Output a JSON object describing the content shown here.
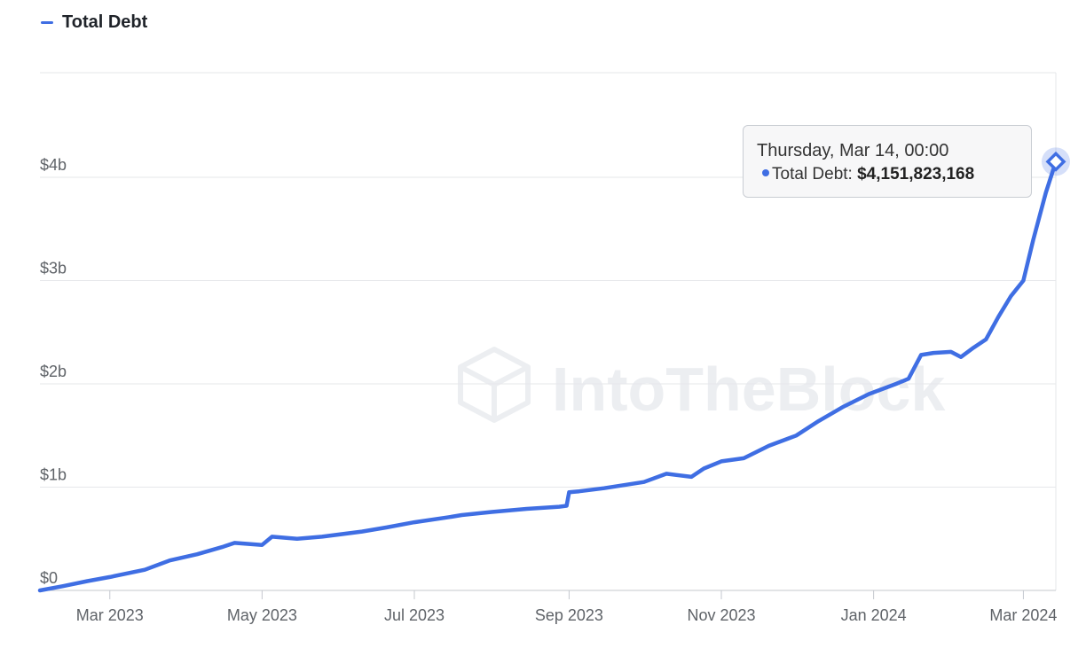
{
  "legend": {
    "label": "Total Debt"
  },
  "colors": {
    "series": "#3f6ee3",
    "grid": "#e6e7ea",
    "axis_text": "#5f6368",
    "watermark": "#eceef1"
  },
  "watermark_text": "IntoTheBlock",
  "tooltip": {
    "date": "Thursday, Mar 14, 00:00",
    "label": "Total Debt:",
    "value": "$4,151,823,168"
  },
  "chart_data": {
    "type": "line",
    "title": "",
    "xlabel": "",
    "ylabel": "",
    "ylim": [
      0,
      4000000000
    ],
    "y_ticks": [
      {
        "value": 0,
        "label": "$0"
      },
      {
        "value": 1000000000,
        "label": "$1b"
      },
      {
        "value": 2000000000,
        "label": "$2b"
      },
      {
        "value": 3000000000,
        "label": "$3b"
      },
      {
        "value": 4000000000,
        "label": "$4b"
      }
    ],
    "x_range": [
      "2023-02-01",
      "2024-03-14"
    ],
    "x_ticks": [
      {
        "date": "2023-03-01",
        "label": "Mar 2023"
      },
      {
        "date": "2023-05-01",
        "label": "May 2023"
      },
      {
        "date": "2023-07-01",
        "label": "Jul 2023"
      },
      {
        "date": "2023-09-01",
        "label": "Sep 2023"
      },
      {
        "date": "2023-11-01",
        "label": "Nov 2023"
      },
      {
        "date": "2024-01-01",
        "label": "Jan 2024"
      },
      {
        "date": "2024-03-01",
        "label": "Mar 2024"
      }
    ],
    "grid": true,
    "legend_position": "top-left",
    "series": [
      {
        "name": "Total Debt",
        "x": [
          "2023-02-01",
          "2023-02-10",
          "2023-02-20",
          "2023-03-01",
          "2023-03-15",
          "2023-03-25",
          "2023-04-05",
          "2023-04-15",
          "2023-04-20",
          "2023-05-01",
          "2023-05-05",
          "2023-05-15",
          "2023-05-25",
          "2023-06-10",
          "2023-06-20",
          "2023-07-01",
          "2023-07-15",
          "2023-07-20",
          "2023-08-01",
          "2023-08-15",
          "2023-08-28",
          "2023-08-31",
          "2023-09-01",
          "2023-09-05",
          "2023-09-15",
          "2023-10-01",
          "2023-10-10",
          "2023-10-20",
          "2023-10-25",
          "2023-11-01",
          "2023-11-10",
          "2023-11-20",
          "2023-12-01",
          "2023-12-10",
          "2023-12-20",
          "2023-12-30",
          "2024-01-10",
          "2024-01-15",
          "2024-01-20",
          "2024-01-25",
          "2024-02-01",
          "2024-02-05",
          "2024-02-10",
          "2024-02-15",
          "2024-02-20",
          "2024-02-25",
          "2024-03-01",
          "2024-03-05",
          "2024-03-10",
          "2024-03-14"
        ],
        "values": [
          0,
          40000000,
          90000000,
          130000000,
          200000000,
          290000000,
          350000000,
          420000000,
          460000000,
          440000000,
          520000000,
          500000000,
          520000000,
          570000000,
          610000000,
          660000000,
          710000000,
          730000000,
          760000000,
          790000000,
          810000000,
          820000000,
          950000000,
          960000000,
          990000000,
          1050000000,
          1130000000,
          1100000000,
          1180000000,
          1250000000,
          1280000000,
          1400000000,
          1500000000,
          1640000000,
          1780000000,
          1900000000,
          2000000000,
          2050000000,
          2280000000,
          2300000000,
          2310000000,
          2260000000,
          2350000000,
          2430000000,
          2650000000,
          2850000000,
          3000000000,
          3400000000,
          3850000000,
          4151823168
        ]
      }
    ]
  }
}
